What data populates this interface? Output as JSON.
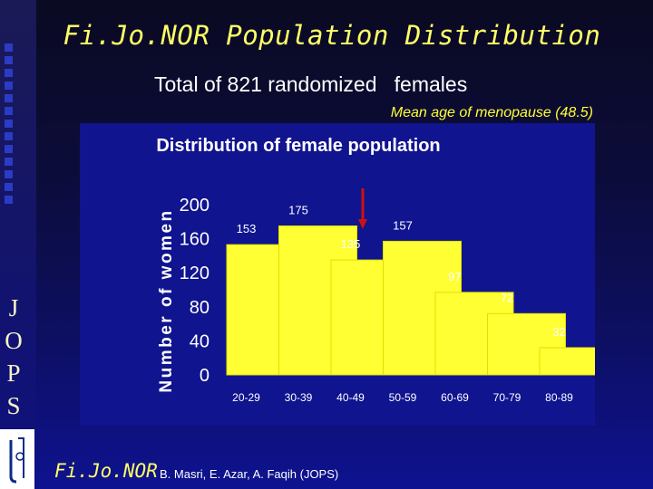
{
  "slide": {
    "title": "Fi.Jo.NOR Population Distribution",
    "subtitle": "Total of 821 randomized   females",
    "note": "Mean age of menopause (48.5)",
    "side_letters": [
      "J",
      "O",
      "P",
      "S"
    ],
    "footer_logo": "Fi.Jo.NOR",
    "footer_authors": "B. Masri, E. Azar, A. Faqih (JOPS)"
  },
  "colors": {
    "background": "#0d0f63",
    "chart_panel": "#10148f",
    "bar_fill": "#ffff33",
    "bar_stroke": "#e0e000",
    "arrow": "#cc1111",
    "title_text": "#ffff66"
  },
  "chart_data": {
    "type": "bar",
    "title": "Distribution of female population",
    "xlabel": "",
    "ylabel": "Number of women",
    "categories": [
      "20-29",
      "30-39",
      "40-49",
      "50-59",
      "60-69",
      "70-79",
      "80-89"
    ],
    "values": [
      153,
      175,
      135,
      157,
      97,
      72,
      32
    ],
    "yticks": [
      0,
      40,
      80,
      120,
      160,
      200
    ],
    "ylim": [
      0,
      200
    ],
    "grid": false,
    "legend": "none",
    "annotation": {
      "type": "arrow",
      "category": "40-49",
      "meaning": "mean age of menopause"
    }
  }
}
